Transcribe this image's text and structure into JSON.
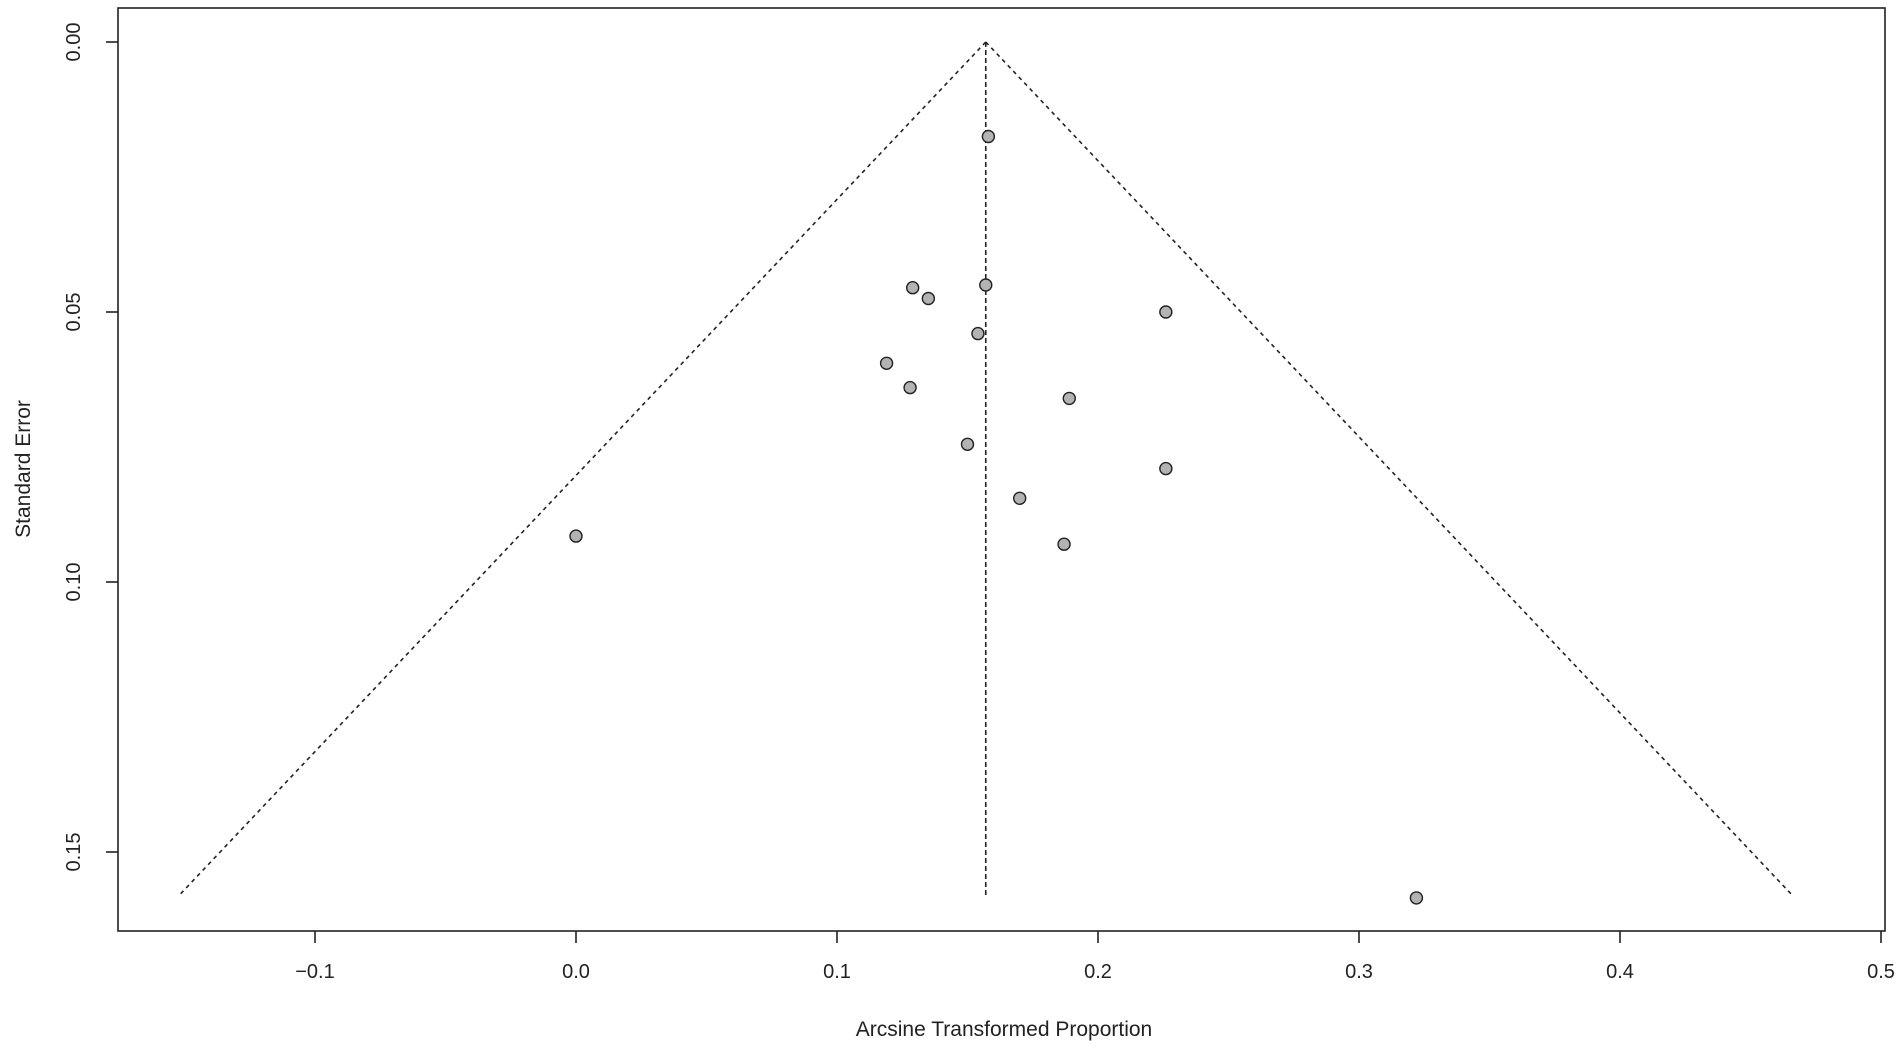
{
  "chart_data": {
    "type": "scatter",
    "title": "",
    "xlabel": "Arcsine Transformed Proportion",
    "ylabel": "Standard Error",
    "xlim": [
      -0.19,
      0.5
    ],
    "ylim": [
      0.0,
      0.163
    ],
    "y_inverted": true,
    "grid": false,
    "legend": "none",
    "x_ticks": [
      -0.1,
      0.0,
      0.1,
      0.2,
      0.3,
      0.4,
      0.5
    ],
    "x_tick_labels": [
      "−0.1",
      "0.0",
      "0.1",
      "0.2",
      "0.3",
      "0.4",
      "0.5"
    ],
    "y_ticks": [
      0.0,
      0.05,
      0.1,
      0.15
    ],
    "y_tick_labels": [
      "0.00",
      "0.05",
      "0.10",
      "0.15"
    ],
    "summary_estimate": 0.157,
    "funnel": {
      "apex": [
        0.157,
        0.0
      ],
      "left_base": [
        -0.152,
        0.158
      ],
      "right_base": [
        0.466,
        0.158
      ],
      "center_line": [
        [
          0.157,
          0.0
        ],
        [
          0.157,
          0.158
        ]
      ]
    },
    "points": [
      {
        "x": 0.158,
        "y": 0.0175
      },
      {
        "x": 0.129,
        "y": 0.0455
      },
      {
        "x": 0.157,
        "y": 0.045
      },
      {
        "x": 0.135,
        "y": 0.0475
      },
      {
        "x": 0.226,
        "y": 0.05
      },
      {
        "x": 0.154,
        "y": 0.054
      },
      {
        "x": 0.119,
        "y": 0.0595
      },
      {
        "x": 0.128,
        "y": 0.064
      },
      {
        "x": 0.189,
        "y": 0.066
      },
      {
        "x": 0.15,
        "y": 0.0745
      },
      {
        "x": 0.226,
        "y": 0.079
      },
      {
        "x": 0.17,
        "y": 0.0845
      },
      {
        "x": 0.0,
        "y": 0.0915
      },
      {
        "x": 0.187,
        "y": 0.093
      },
      {
        "x": 0.322,
        "y": 0.1585
      }
    ],
    "colors": {
      "point_fill": "#b3b3b3",
      "point_stroke": "#222222",
      "line": "#222222",
      "background": "#ffffff"
    }
  }
}
